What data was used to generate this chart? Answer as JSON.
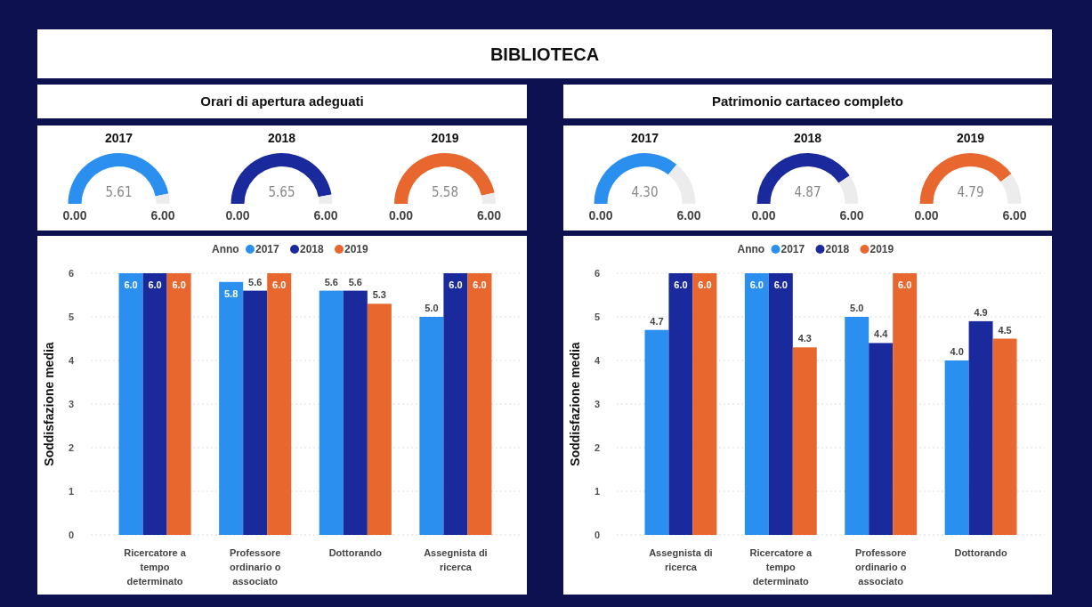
{
  "chart_data": [
    {
      "type": "other",
      "title": "BIBLIOTECA"
    },
    {
      "type": "other",
      "title": "Orari di apertura adeguati"
    },
    {
      "type": "other",
      "title": "Patrimonio cartaceo completo"
    },
    {
      "type": "donut",
      "title": "2017",
      "categories": [
        null,
        null
      ],
      "values": [
        5.61,
        0.39
      ],
      "colors": [
        "#2b8ff0",
        "#ececec"
      ],
      "value_labels": [
        "5.61",
        null
      ],
      "annotations": [
        "0.00",
        "6.00"
      ]
    },
    {
      "type": "donut",
      "title": "2018",
      "categories": [
        null,
        null
      ],
      "values": [
        5.65,
        0.35
      ],
      "colors": [
        "#1a2a9c",
        "#ececec"
      ],
      "value_labels": [
        "5.65",
        null
      ],
      "annotations": [
        "0.00",
        "6.00"
      ]
    },
    {
      "type": "donut",
      "title": "2019",
      "categories": [
        null,
        null
      ],
      "values": [
        5.58,
        0.42
      ],
      "colors": [
        "#e8672e",
        "#ececec"
      ],
      "value_labels": [
        "5.58",
        null
      ],
      "annotations": [
        "0.00",
        "6.00"
      ]
    },
    {
      "type": "donut",
      "title": "2017",
      "categories": [
        null,
        null
      ],
      "values": [
        4.3,
        1.7
      ],
      "colors": [
        "#2b8ff0",
        "#ececec"
      ],
      "value_labels": [
        "4.30",
        null
      ],
      "annotations": [
        "0.00",
        "6.00"
      ]
    },
    {
      "type": "donut",
      "title": "2018",
      "categories": [
        null,
        null
      ],
      "values": [
        4.87,
        1.13
      ],
      "colors": [
        "#1a2a9c",
        "#ececec"
      ],
      "value_labels": [
        "4.87",
        null
      ],
      "annotations": [
        "0.00",
        "6.00"
      ]
    },
    {
      "type": "donut",
      "title": "2019",
      "categories": [
        null,
        null
      ],
      "values": [
        4.79,
        1.21
      ],
      "colors": [
        "#e8672e",
        "#ececec"
      ],
      "value_labels": [
        "4.79",
        null
      ],
      "annotations": [
        "0.00",
        "6.00"
      ]
    },
    {
      "type": "bar",
      "ylabel": "Soddisfazione media",
      "legend_title": "Anno",
      "legend": "top",
      "grid": "y",
      "ylim": [
        0,
        6
      ],
      "yticks": [
        0,
        1,
        2,
        3,
        4,
        5,
        6
      ],
      "categories": [
        "Ricercatore a tempo determinato",
        "Professore ordinario o associato",
        "Dottorando",
        "Assegnista di ricerca"
      ],
      "series": [
        {
          "name": "2017",
          "color": "#2b8ff0",
          "values": [
            6.0,
            5.8,
            5.6,
            5.0
          ],
          "value_labels": [
            "6.0",
            "5.8",
            "5.6",
            "5.0"
          ]
        },
        {
          "name": "2018",
          "color": "#1a2a9c",
          "values": [
            6.0,
            5.6,
            5.6,
            6.0
          ],
          "value_labels": [
            "6.0",
            "5.6",
            "5.6",
            "6.0"
          ]
        },
        {
          "name": "2019",
          "color": "#e8672e",
          "values": [
            6.0,
            6.0,
            5.3,
            6.0
          ],
          "value_labels": [
            "6.0",
            "6.0",
            "5.3",
            "6.0"
          ]
        }
      ]
    },
    {
      "type": "bar",
      "ylabel": "Soddisfazione media",
      "legend_title": "Anno",
      "legend": "top",
      "grid": "y",
      "ylim": [
        0,
        6
      ],
      "yticks": [
        0,
        1,
        2,
        3,
        4,
        5,
        6
      ],
      "categories": [
        "Assegnista di ricerca",
        "Ricercatore a tempo determinato",
        "Professore ordinario o associato",
        "Dottorando"
      ],
      "series": [
        {
          "name": "2017",
          "color": "#2b8ff0",
          "values": [
            4.7,
            6.0,
            5.0,
            4.0
          ],
          "value_labels": [
            "4.7",
            "6.0",
            "5.0",
            "4.0"
          ]
        },
        {
          "name": "2018",
          "color": "#1a2a9c",
          "values": [
            6.0,
            6.0,
            4.4,
            4.9
          ],
          "value_labels": [
            "6.0",
            "6.0",
            "4.4",
            "4.9"
          ]
        },
        {
          "name": "2019",
          "color": "#e8672e",
          "values": [
            6.0,
            4.3,
            6.0,
            4.5
          ],
          "value_labels": [
            "6.0",
            "4.3",
            "6.0",
            "4.5"
          ]
        }
      ]
    }
  ]
}
